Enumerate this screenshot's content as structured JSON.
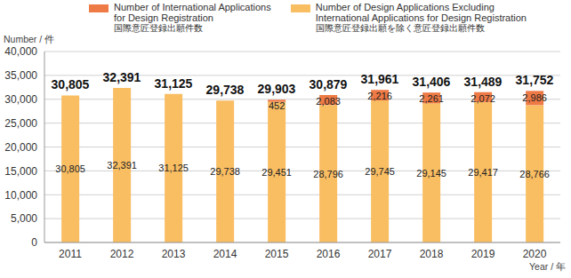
{
  "chart_data": {
    "type": "bar",
    "stacked": true,
    "data_labels": true,
    "grid": true,
    "legend": "top",
    "xlabel": "Year / 年",
    "ylabel": "Number / 件",
    "categories": [
      "2011",
      "2012",
      "2013",
      "2014",
      "2015",
      "2016",
      "2017",
      "2018",
      "2019",
      "2020"
    ],
    "series": [
      {
        "name": "Number of Design Applications Excluding\nInternational Applications for Design Registration\n国際意匠登録出願を除く意匠登録出願件数",
        "color": "#F9BD62",
        "values": [
          30805,
          32391,
          31125,
          29738,
          29451,
          28796,
          29745,
          29145,
          29417,
          28766
        ],
        "value_labels": [
          "30,805",
          "32,391",
          "31,125",
          "29,738",
          "29,451",
          "28,796",
          "29,745",
          "29,145",
          "29,417",
          "28,766"
        ]
      },
      {
        "name": "Number of International Applications\nfor Design Registration\n国際意匠登録出願件数",
        "color": "#EE7A45",
        "values": [
          null,
          null,
          null,
          null,
          452,
          2083,
          2216,
          2261,
          2072,
          2986
        ],
        "value_labels": [
          null,
          null,
          null,
          null,
          "452",
          "2,083",
          "2,216",
          "2,261",
          "2,072",
          "2,986"
        ]
      }
    ],
    "totals": [
      30805,
      32391,
      31125,
      29738,
      29903,
      30879,
      31961,
      31406,
      31489,
      31752
    ],
    "total_labels": [
      "30,805",
      "32,391",
      "31,125",
      "29,738",
      "29,903",
      "30,879",
      "31,961",
      "31,406",
      "31,489",
      "31,752"
    ],
    "ylim": [
      0,
      40000
    ],
    "yticks": [
      0,
      {
        "value": 5000,
        "label": "5,000"
      },
      {
        "value": 10000,
        "label": "10,000"
      },
      {
        "value": 15000,
        "label": "15,000"
      },
      {
        "value": 20000,
        "label": "20,000"
      },
      {
        "value": 25000,
        "label": "25,000"
      },
      {
        "value": 30000,
        "label": "30,000"
      },
      {
        "value": 35000,
        "label": "35,000"
      },
      {
        "value": 40000,
        "label": "40,000"
      }
    ]
  }
}
